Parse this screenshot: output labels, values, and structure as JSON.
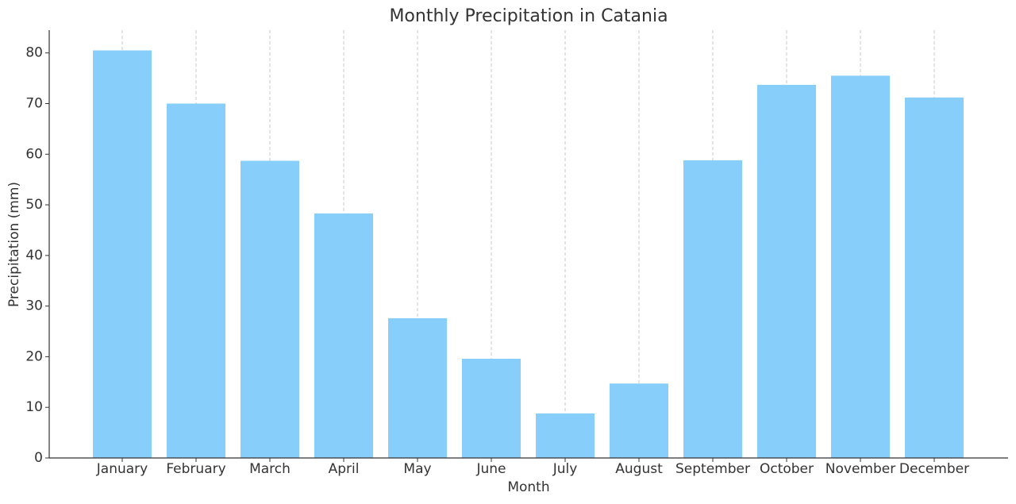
{
  "chart_data": {
    "type": "bar",
    "title": "Monthly Precipitation in Catania",
    "x_label": "Month",
    "y_label": "Precipitation (mm)",
    "categories": [
      "January",
      "February",
      "March",
      "April",
      "May",
      "June",
      "July",
      "August",
      "September",
      "October",
      "November",
      "December"
    ],
    "values": [
      80.5,
      70.0,
      58.7,
      48.3,
      27.6,
      19.6,
      8.8,
      14.7,
      58.8,
      73.7,
      75.5,
      71.2
    ],
    "color": "#87cefa",
    "ylim": [
      0,
      84.5
    ],
    "yticks": [
      0,
      10,
      20,
      30,
      40,
      50,
      60,
      70,
      80
    ],
    "grid": "x"
  }
}
